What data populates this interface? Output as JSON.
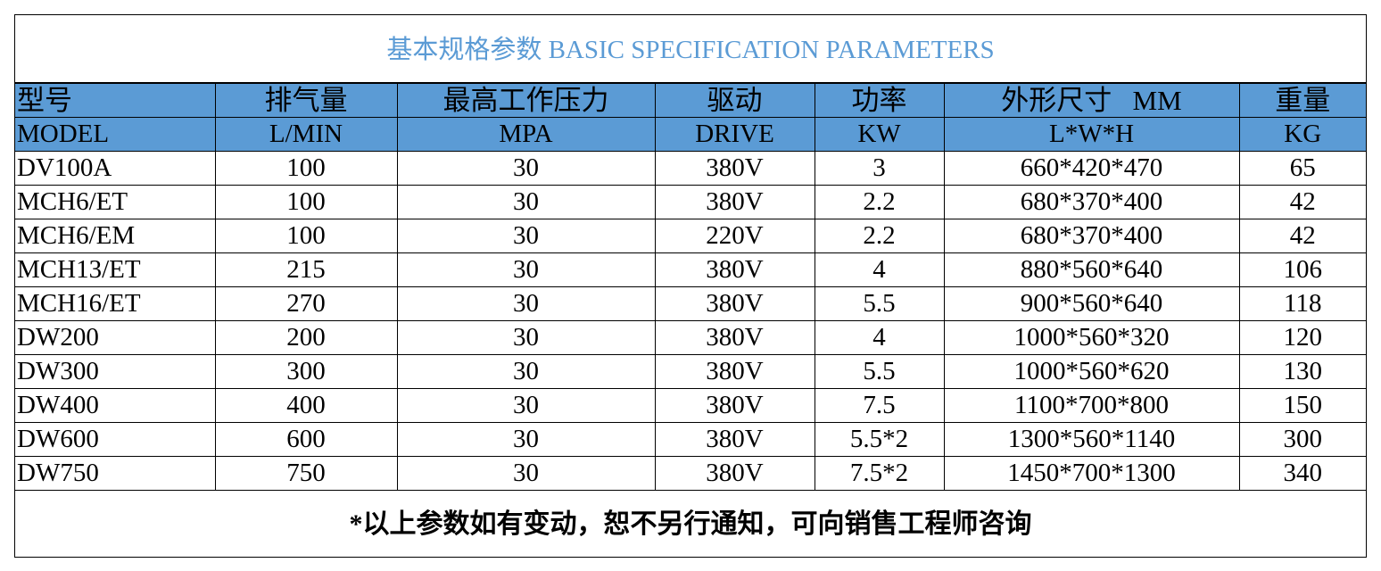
{
  "title": "基本规格参数 BASIC SPECIFICATION PARAMETERS",
  "table": {
    "header_cn": [
      "型号",
      "排气量",
      "最高工作压力",
      "驱动",
      "功率",
      "外形尺寸   MM",
      "重量"
    ],
    "header_en": [
      "MODEL",
      "L/MIN",
      "MPA",
      "DRIVE",
      "KW",
      "L*W*H",
      "KG"
    ],
    "rows": [
      [
        "DV100A",
        "100",
        "30",
        "380V",
        "3",
        "660*420*470",
        "65"
      ],
      [
        "MCH6/ET",
        "100",
        "30",
        "380V",
        "2.2",
        "680*370*400",
        "42"
      ],
      [
        "MCH6/EM",
        "100",
        "30",
        "220V",
        "2.2",
        "680*370*400",
        "42"
      ],
      [
        "MCH13/ET",
        "215",
        "30",
        "380V",
        "4",
        "880*560*640",
        "106"
      ],
      [
        "MCH16/ET",
        "270",
        "30",
        "380V",
        "5.5",
        "900*560*640",
        "118"
      ],
      [
        "DW200",
        "200",
        "30",
        "380V",
        "4",
        "1000*560*320",
        "120"
      ],
      [
        "DW300",
        "300",
        "30",
        "380V",
        "5.5",
        "1000*560*620",
        "130"
      ],
      [
        "DW400",
        "400",
        "30",
        "380V",
        "7.5",
        "1100*700*800",
        "150"
      ],
      [
        "DW600",
        "600",
        "30",
        "380V",
        "5.5*2",
        "1300*560*1140",
        "300"
      ],
      [
        "DW750",
        "750",
        "30",
        "380V",
        "7.5*2",
        "1450*700*1300",
        "340"
      ]
    ]
  },
  "footer": "*以上参数如有变动，恕不另行通知，可向销售工程师咨询"
}
